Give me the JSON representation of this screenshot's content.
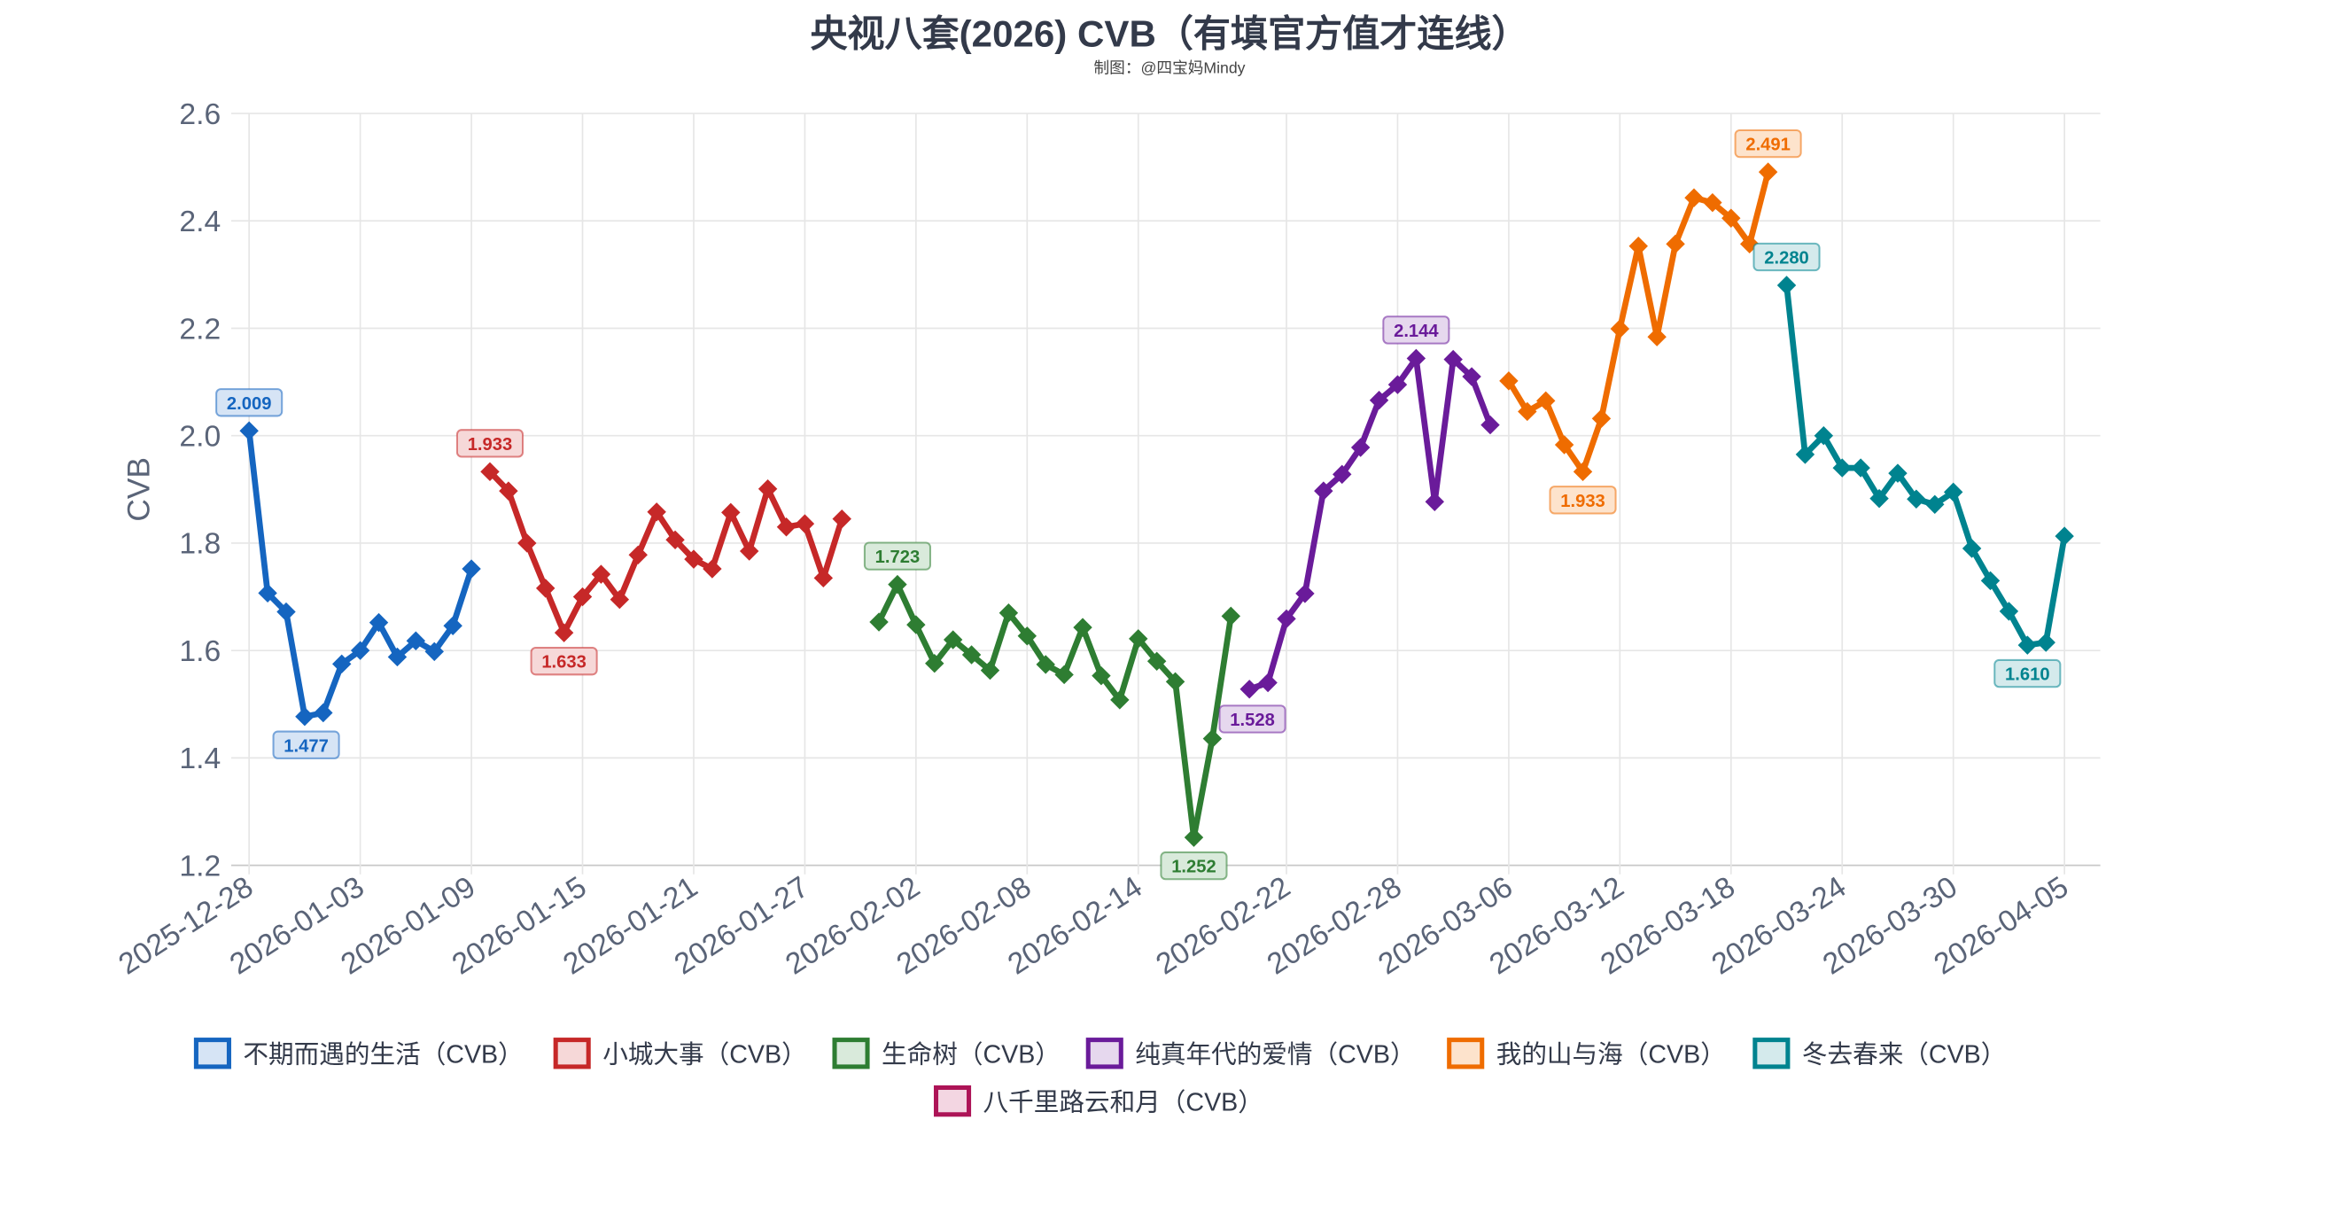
{
  "chart_data": {
    "type": "line",
    "title": "央视八套(2026) CVB（有填官方值才连线）",
    "subtitle": "制图：@四宝妈Mindy",
    "ylabel": "CVB",
    "xlabel": "",
    "ylim": [
      1.2,
      2.6
    ],
    "yticks": [
      "1.2",
      "1.4",
      "1.6",
      "1.8",
      "2.0",
      "2.2",
      "2.4",
      "2.6"
    ],
    "xlim": [
      "2025-12-28",
      "2026-04-07"
    ],
    "xticks": [
      "2025-12-28",
      "2026-01-03",
      "2026-01-09",
      "2026-01-15",
      "2026-01-21",
      "2026-01-27",
      "2026-02-02",
      "2026-02-08",
      "2026-02-14",
      "2026-02-22",
      "2026-02-28",
      "2026-03-06",
      "2026-03-12",
      "2026-03-18",
      "2026-03-24",
      "2026-03-30",
      "2026-04-05"
    ],
    "grid": true,
    "legend_position": "bottom",
    "marker": "diamond",
    "series": [
      {
        "name": "不期而遇的生活（CVB）",
        "color": "#1565c0",
        "fill": "#d6e4f5",
        "x": [
          "2025-12-28",
          "2025-12-29",
          "2025-12-30",
          "2025-12-31",
          "2026-01-01",
          "2026-01-02",
          "2026-01-03",
          "2026-01-04",
          "2026-01-05",
          "2026-01-06",
          "2026-01-07",
          "2026-01-08",
          "2026-01-09"
        ],
        "values": [
          2.009,
          1.707,
          1.672,
          1.477,
          1.484,
          1.575,
          1.6,
          1.652,
          1.588,
          1.618,
          1.598,
          1.646,
          1.752
        ]
      },
      {
        "name": "小城大事（CVB）",
        "color": "#c62828",
        "fill": "#f6d8d8",
        "x": [
          "2026-01-10",
          "2026-01-11",
          "2026-01-12",
          "2026-01-13",
          "2026-01-14",
          "2026-01-15",
          "2026-01-16",
          "2026-01-17",
          "2026-01-18",
          "2026-01-19",
          "2026-01-20",
          "2026-01-21",
          "2026-01-22",
          "2026-01-23",
          "2026-01-24",
          "2026-01-25",
          "2026-01-26",
          "2026-01-27",
          "2026-01-28",
          "2026-01-29"
        ],
        "values": [
          1.933,
          1.897,
          1.8,
          1.716,
          1.633,
          1.7,
          1.742,
          1.695,
          1.778,
          1.858,
          1.806,
          1.77,
          1.752,
          1.857,
          1.785,
          1.901,
          1.83,
          1.836,
          1.735,
          1.845
        ]
      },
      {
        "name": "生命树（CVB）",
        "color": "#2e7d32",
        "fill": "#d9eadb",
        "x": [
          "2026-01-31",
          "2026-02-01",
          "2026-02-02",
          "2026-02-03",
          "2026-02-04",
          "2026-02-05",
          "2026-02-06",
          "2026-02-07",
          "2026-02-08",
          "2026-02-09",
          "2026-02-10",
          "2026-02-11",
          "2026-02-12",
          "2026-02-13",
          "2026-02-14",
          "2026-02-15",
          "2026-02-16",
          "2026-02-17",
          "2026-02-18",
          "2026-02-19"
        ],
        "values": [
          1.653,
          1.723,
          1.648,
          1.576,
          1.62,
          1.592,
          1.563,
          1.67,
          1.627,
          1.574,
          1.555,
          1.643,
          1.553,
          1.508,
          1.622,
          1.58,
          1.542,
          1.252,
          1.436,
          1.664
        ]
      },
      {
        "name": "纯真年代的爱情（CVB）",
        "color": "#6a1b9a",
        "fill": "#e6d8ee",
        "x": [
          "2026-02-20",
          "2026-02-21",
          "2026-02-22",
          "2026-02-23",
          "2026-02-24",
          "2026-02-25",
          "2026-02-26",
          "2026-02-27",
          "2026-02-28",
          "2026-03-01",
          "2026-03-02",
          "2026-03-03",
          "2026-03-04",
          "2026-03-05"
        ],
        "values": [
          1.528,
          1.54,
          1.659,
          1.706,
          1.897,
          1.928,
          1.978,
          2.066,
          2.095,
          2.144,
          1.877,
          2.142,
          2.11,
          2.02
        ]
      },
      {
        "name": "我的山与海（CVB）",
        "color": "#ef6c00",
        "fill": "#fde3cc",
        "x": [
          "2026-03-06",
          "2026-03-07",
          "2026-03-08",
          "2026-03-09",
          "2026-03-10",
          "2026-03-11",
          "2026-03-12",
          "2026-03-13",
          "2026-03-14",
          "2026-03-15",
          "2026-03-16",
          "2026-03-17",
          "2026-03-18",
          "2026-03-19",
          "2026-03-20"
        ],
        "values": [
          2.102,
          2.045,
          2.065,
          1.983,
          1.933,
          2.032,
          2.199,
          2.353,
          2.184,
          2.357,
          2.443,
          2.434,
          2.405,
          2.357,
          2.491
        ]
      },
      {
        "name": "冬去春来（CVB）",
        "color": "#00838f",
        "fill": "#d4eaec",
        "x": [
          "2026-03-21",
          "2026-03-22",
          "2026-03-23",
          "2026-03-24",
          "2026-03-25",
          "2026-03-26",
          "2026-03-27",
          "2026-03-28",
          "2026-03-29",
          "2026-03-30",
          "2026-03-31",
          "2026-04-01",
          "2026-04-02",
          "2026-04-03",
          "2026-04-04",
          "2026-04-05"
        ],
        "values": [
          2.28,
          1.965,
          2.0,
          1.94,
          1.94,
          1.883,
          1.93,
          1.882,
          1.872,
          1.895,
          1.79,
          1.73,
          1.673,
          1.61,
          1.615,
          1.813
        ]
      },
      {
        "name": "八千里路云和月（CVB）",
        "color": "#ad1457",
        "fill": "#f3d6e2",
        "x": [],
        "values": []
      }
    ],
    "annotations": [
      {
        "series": 0,
        "x": "2025-12-28",
        "value": 2.009,
        "text": "2.009",
        "pos": "above"
      },
      {
        "series": 0,
        "x": "2025-12-31",
        "value": 1.477,
        "text": "1.477",
        "pos": "below"
      },
      {
        "series": 1,
        "x": "2026-01-10",
        "value": 1.933,
        "text": "1.933",
        "pos": "above"
      },
      {
        "series": 1,
        "x": "2026-01-14",
        "value": 1.633,
        "text": "1.633",
        "pos": "below"
      },
      {
        "series": 2,
        "x": "2026-02-01",
        "value": 1.723,
        "text": "1.723",
        "pos": "above"
      },
      {
        "series": 2,
        "x": "2026-02-17",
        "value": 1.252,
        "text": "1.252",
        "pos": "below"
      },
      {
        "series": 3,
        "x": "2026-02-20",
        "value": 1.528,
        "text": "1.528",
        "pos": "below"
      },
      {
        "series": 3,
        "x": "2026-03-01",
        "value": 2.144,
        "text": "2.144",
        "pos": "above"
      },
      {
        "series": 4,
        "x": "2026-03-10",
        "value": 1.933,
        "text": "1.933",
        "pos": "below"
      },
      {
        "series": 4,
        "x": "2026-03-20",
        "value": 2.491,
        "text": "2.491",
        "pos": "above"
      },
      {
        "series": 5,
        "x": "2026-03-21",
        "value": 2.28,
        "text": "2.280",
        "pos": "above"
      },
      {
        "series": 5,
        "x": "2026-04-03",
        "value": 1.61,
        "text": "1.610",
        "pos": "below"
      }
    ]
  }
}
